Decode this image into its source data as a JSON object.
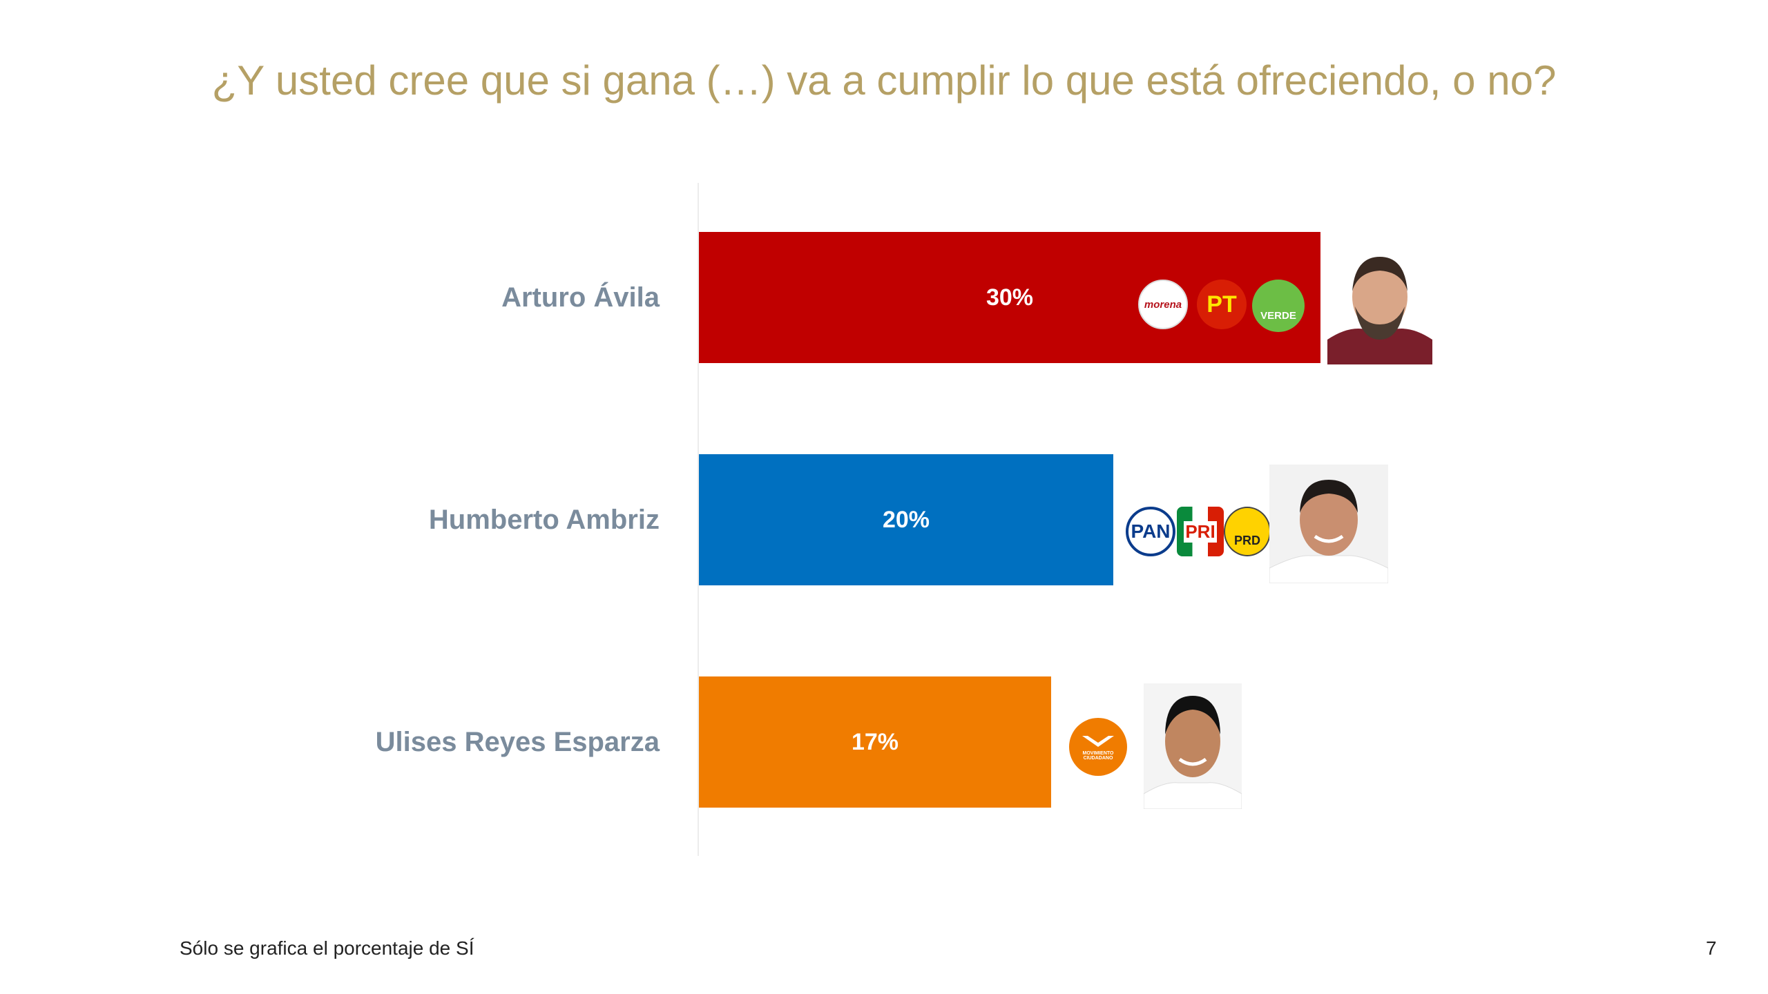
{
  "title": "¿Y usted cree que si gana (…) va a cumplir lo que está ofreciendo, o no?",
  "footnote": "Sólo se grafica el porcentaje de SÍ",
  "page_number": "7",
  "chart_data": {
    "type": "bar",
    "orientation": "horizontal",
    "categories": [
      "Arturo Ávila",
      "Humberto Ambriz",
      "Ulises Reyes Esparza"
    ],
    "values": [
      30,
      20,
      17
    ],
    "value_labels": [
      "30%",
      "20%",
      "17%"
    ],
    "colors": [
      "#C00000",
      "#0070C0",
      "#F07C00"
    ],
    "xlim": [
      0,
      30
    ],
    "grid": false,
    "legend": "none"
  },
  "party_logos": {
    "arturo": [
      {
        "text": "morena",
        "color": "#B5121B",
        "bg": "#ffffff"
      },
      {
        "text": "PT",
        "color": "#FFE600",
        "bg": "#D81E05"
      },
      {
        "text": "VERDE",
        "color": "#ffffff",
        "bg": "#6CBE45"
      }
    ],
    "humberto": [
      {
        "text": "PAN",
        "color": "#0B3C8C",
        "bg": "#ffffff"
      },
      {
        "text": "PRI",
        "color": "#D81E05",
        "bg": "#ffffff"
      },
      {
        "text": "PRD",
        "color": "#222222",
        "bg": "#FFD200"
      }
    ],
    "ulises": [
      {
        "text": "MOVIMIENTO CIUDADANO",
        "color": "#ffffff",
        "bg": "#F07C00"
      }
    ]
  }
}
